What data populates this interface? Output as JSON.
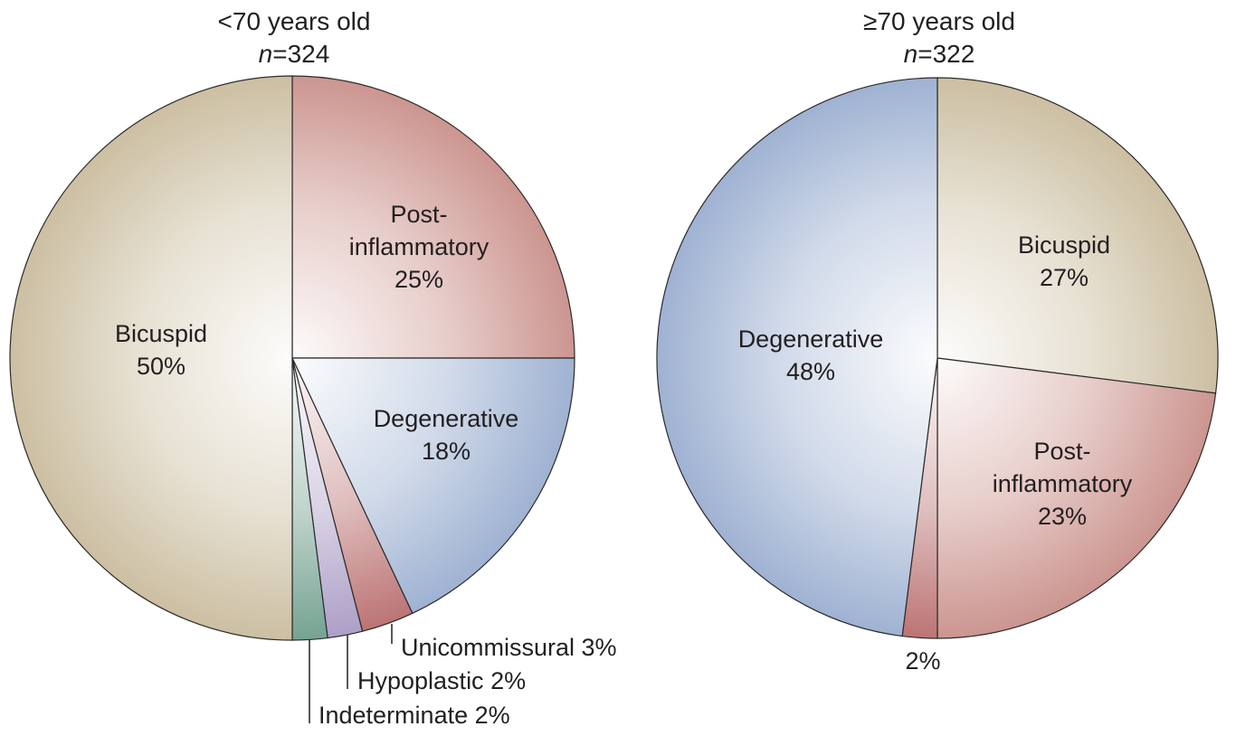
{
  "chart_data": [
    {
      "type": "pie",
      "title": "<70 years old",
      "subtitle_n_symbol": "n",
      "subtitle_n_value": "=324",
      "slices": [
        {
          "name": "Post-inflammatory",
          "label_lines": [
            "Post-",
            "inflammatory",
            "25%"
          ],
          "value": 25,
          "color": "#c98f8a"
        },
        {
          "name": "Degenerative",
          "label_lines": [
            "Degenerative",
            "18%"
          ],
          "value": 18,
          "color": "#9aaed0"
        },
        {
          "name": "Unicommissural",
          "label_lines": [
            "Unicommissural 3%"
          ],
          "value": 3,
          "color": "#b86d6d"
        },
        {
          "name": "Hypoplastic",
          "label_lines": [
            "Hypoplastic 2%"
          ],
          "value": 2,
          "color": "#a99ac4"
        },
        {
          "name": "Indeterminate",
          "label_lines": [
            "Indeterminate 2%"
          ],
          "value": 2,
          "color": "#6e9e8c"
        },
        {
          "name": "Bicuspid",
          "label_lines": [
            "Bicuspid",
            "50%"
          ],
          "value": 50,
          "color": "#c9bc9d"
        }
      ]
    },
    {
      "type": "pie",
      "title": "≥70 years old",
      "subtitle_n_symbol": "n",
      "subtitle_n_value": "=322",
      "slices": [
        {
          "name": "Bicuspid",
          "label_lines": [
            "Bicuspid",
            "27%"
          ],
          "value": 27,
          "color": "#c9bc9d"
        },
        {
          "name": "Post-inflammatory",
          "label_lines": [
            "Post-",
            "inflammatory",
            "23%"
          ],
          "value": 23,
          "color": "#c98f8a"
        },
        {
          "name": "Unlabeled 2%",
          "label_lines": [
            "2%"
          ],
          "value": 2,
          "color": "#b86d6d"
        },
        {
          "name": "Degenerative",
          "label_lines": [
            "Degenerative",
            "48%"
          ],
          "value": 48,
          "color": "#9aaed0"
        }
      ]
    }
  ]
}
